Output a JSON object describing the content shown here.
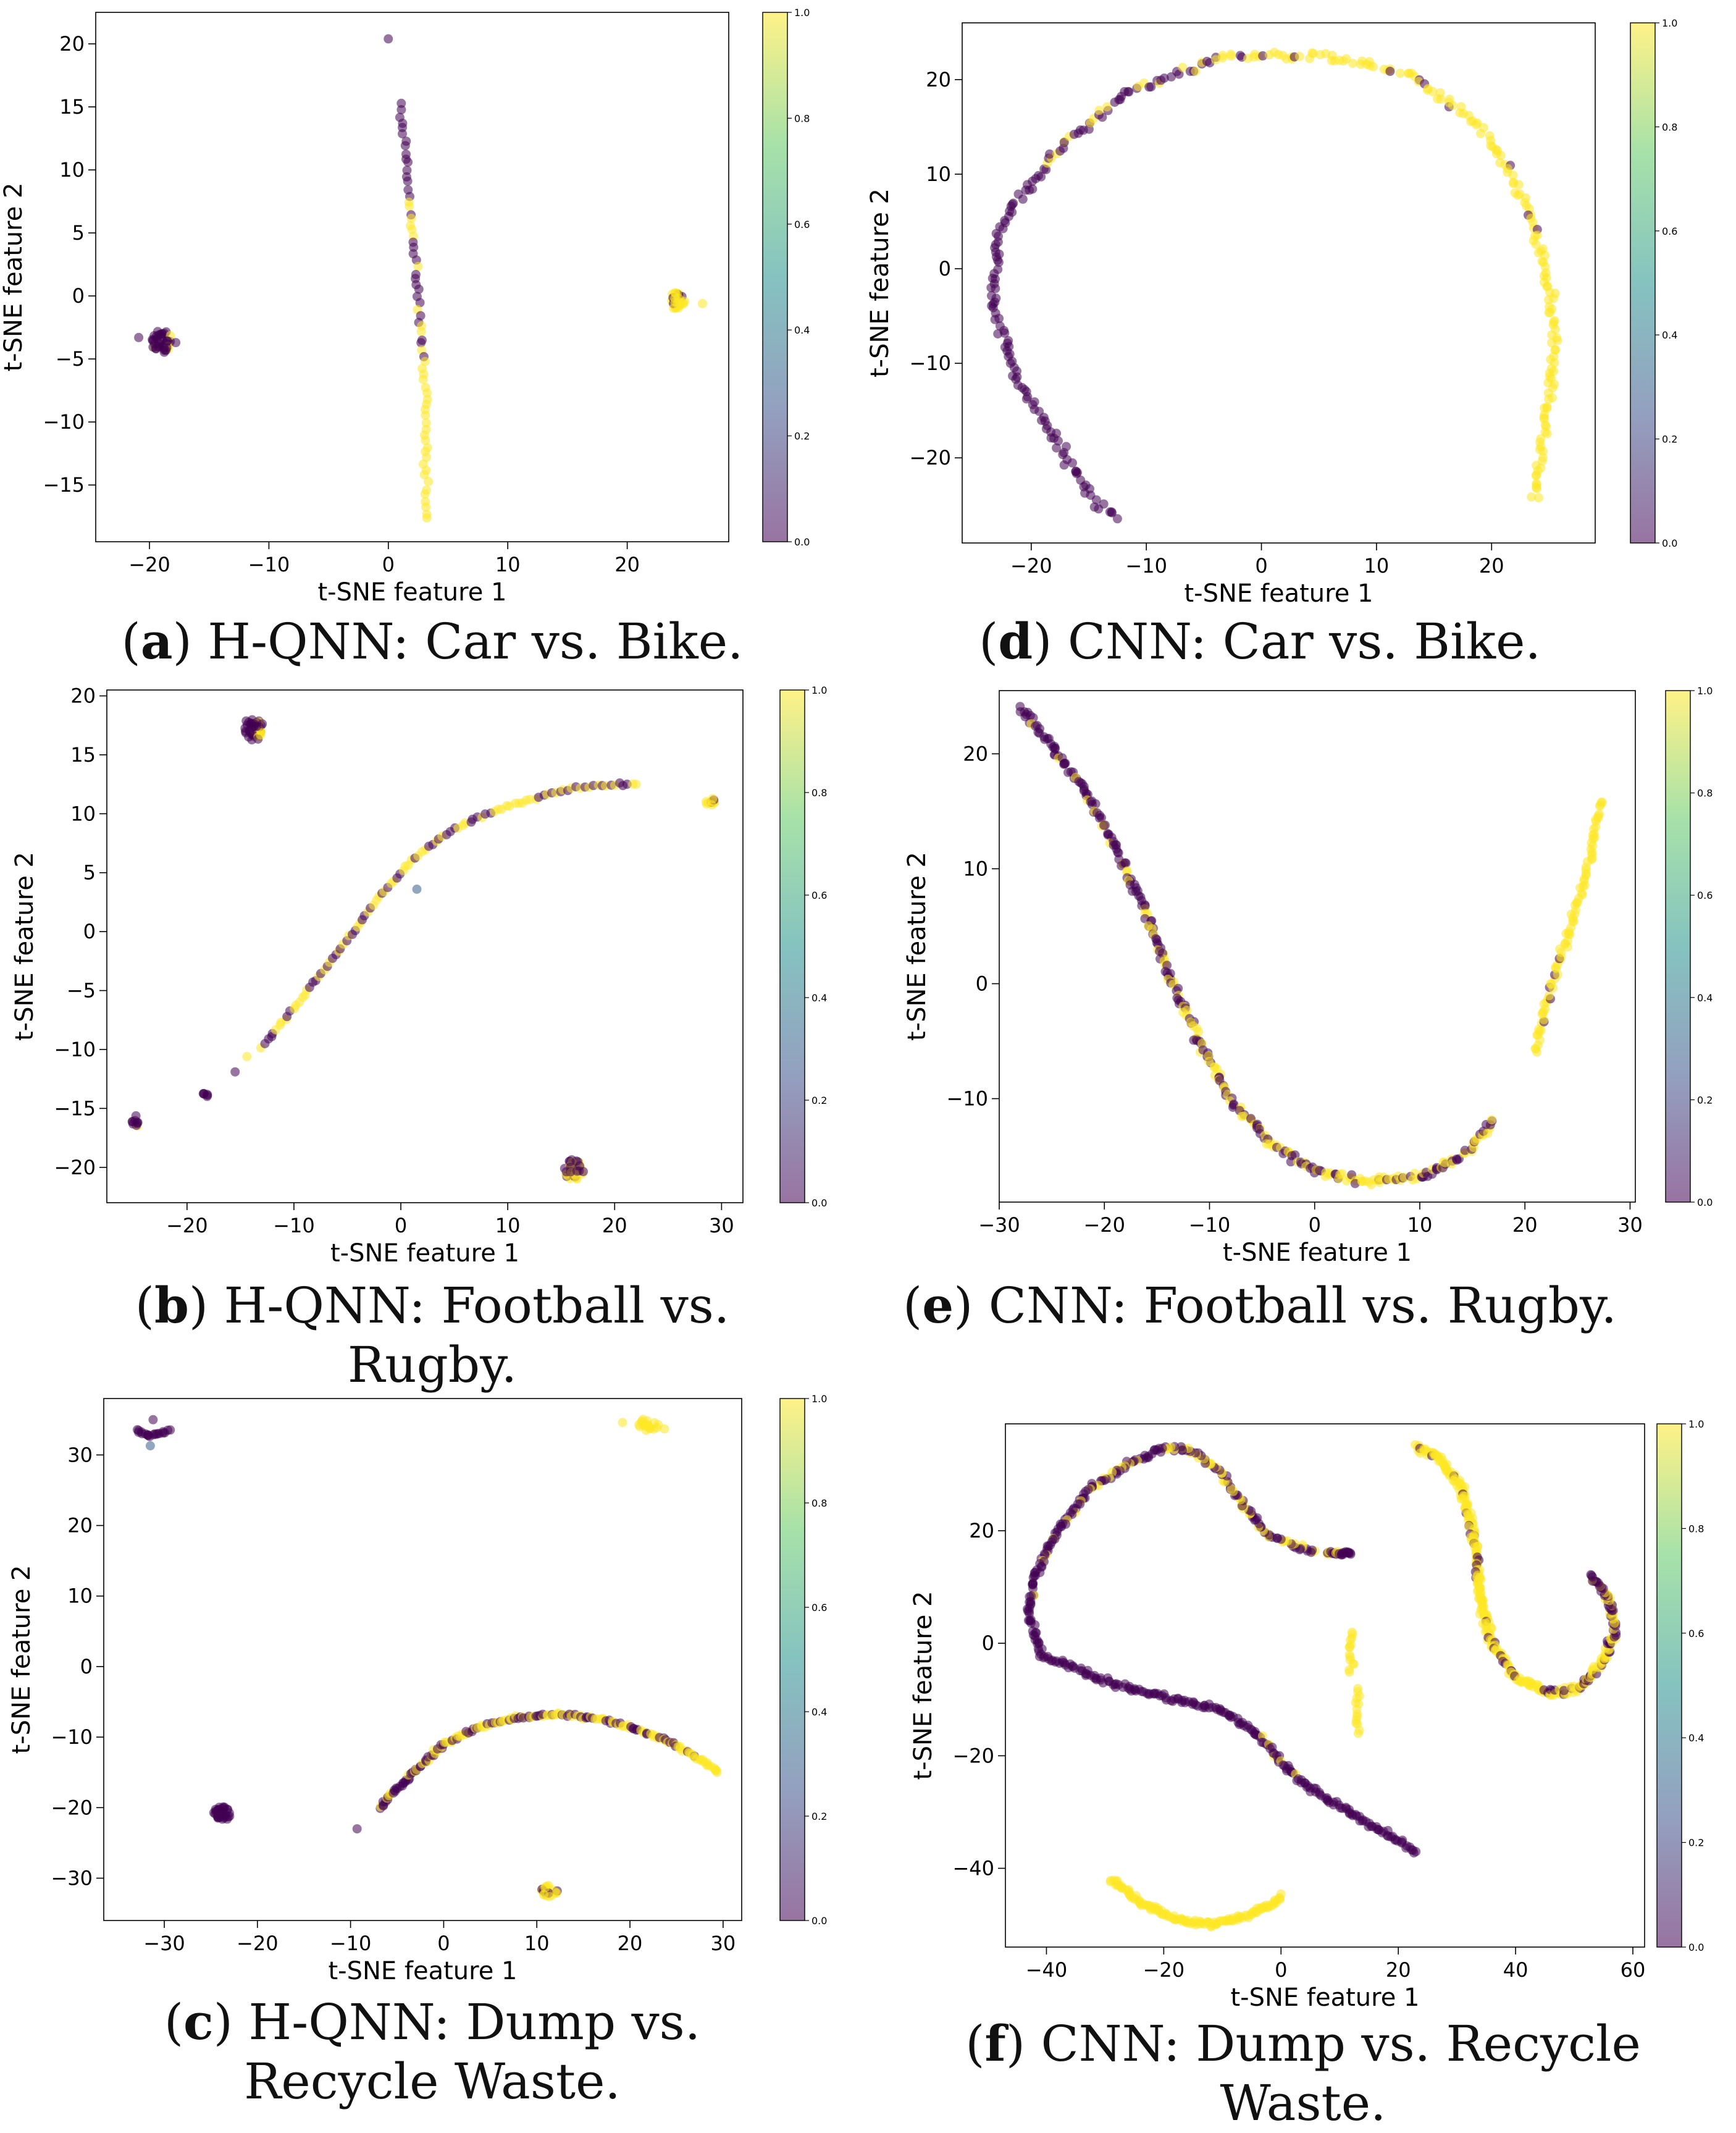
{
  "axis_text": {
    "xlabel": "t-SNE feature 1",
    "ylabel": "t-SNE feature 2"
  },
  "colormap": {
    "name": "viridis",
    "stops": [
      "#440154",
      "#3b528b",
      "#21918c",
      "#5ec962",
      "#fde725"
    ],
    "alpha": 0.55
  },
  "captions": [
    {
      "letter": "a",
      "text": "H-QNN: Car vs. Bike."
    },
    {
      "letter": "d",
      "text": "CNN: Car vs. Bike."
    },
    {
      "letter": "b",
      "text": "H-QNN: Football vs. Rugby."
    },
    {
      "letter": "e",
      "text": "CNN: Football vs. Rugby."
    },
    {
      "letter": "c",
      "text": "H-QNN: Dump vs. Recycle Waste."
    },
    {
      "letter": "f",
      "text": "CNN: Dump vs. Recycle Waste."
    }
  ],
  "chart_data": [
    {
      "id": "a",
      "type": "scatter",
      "title": "",
      "xlabel": "t-SNE feature 1",
      "ylabel": "t-SNE feature 2",
      "xlim": [
        -24.5,
        28.5
      ],
      "ylim": [
        -19.5,
        22.5
      ],
      "xticks": [
        -20,
        -10,
        0,
        10,
        20
      ],
      "yticks": [
        -15,
        -10,
        -5,
        0,
        5,
        10,
        15,
        20
      ],
      "colorbar": {
        "range": [
          0,
          1
        ],
        "ticks": [
          0.0,
          0.2,
          0.4,
          0.6,
          0.8,
          1.0
        ]
      },
      "groups": [
        {
          "kind": "blob",
          "label": 0.15,
          "cx": -19.0,
          "cy": -3.6,
          "r": 0.9,
          "n": 45
        },
        {
          "kind": "point",
          "label": 0,
          "x": -20.9,
          "y": -3.3
        },
        {
          "kind": "point",
          "label": 0,
          "x": -17.8,
          "y": -3.7
        },
        {
          "kind": "blob",
          "label": 0.92,
          "cx": 24.2,
          "cy": -0.4,
          "r": 0.7,
          "n": 38
        },
        {
          "kind": "point",
          "label": 1,
          "x": 26.3,
          "y": -0.6
        },
        {
          "kind": "point",
          "label": 0,
          "x": 0.0,
          "y": 20.4
        },
        {
          "kind": "curve",
          "n": 70,
          "jitter": 0.15,
          "points": [
            [
              1.0,
              15.2
            ],
            [
              1.4,
              11.5
            ],
            [
              2.0,
              5.0
            ],
            [
              2.6,
              -1.0
            ],
            [
              3.0,
              -6.0
            ],
            [
              3.1,
              -11.3
            ],
            [
              3.2,
              -17.7
            ]
          ],
          "labels": [
            0,
            0,
            0.35,
            0.5,
            0.85,
            1,
            1
          ]
        }
      ]
    },
    {
      "id": "d",
      "type": "scatter",
      "title": "",
      "xlabel": "t-SNE feature 1",
      "ylabel": "t-SNE feature 2",
      "xlim": [
        -26,
        29
      ],
      "ylim": [
        -29,
        26
      ],
      "xticks": [
        -20,
        -10,
        0,
        10,
        20
      ],
      "yticks": [
        -20,
        -10,
        0,
        10,
        20
      ],
      "colorbar": {
        "range": [
          0,
          1
        ],
        "ticks": [
          0.0,
          0.2,
          0.4,
          0.6,
          0.8,
          1.0
        ]
      },
      "groups": [
        {
          "kind": "curve",
          "n": 340,
          "jitter": 0.35,
          "points": [
            [
              -12.5,
              -26
            ],
            [
              -14.5,
              -24.5
            ],
            [
              -18,
              -18
            ],
            [
              -21.5,
              -11
            ],
            [
              -23.3,
              -4
            ],
            [
              -23,
              3
            ],
            [
              -22,
              6
            ],
            [
              -18,
              12
            ],
            [
              -12,
              18.5
            ],
            [
              -3,
              22.5
            ],
            [
              5,
              22.5
            ],
            [
              13,
              20.5
            ],
            [
              19,
              15
            ],
            [
              23,
              7
            ],
            [
              25,
              -2
            ],
            [
              25.5,
              -9
            ],
            [
              24.5,
              -18
            ],
            [
              23.8,
              -24.3
            ]
          ],
          "labels": [
            0,
            0,
            0,
            0,
            0,
            0,
            0.05,
            0.15,
            0.3,
            0.5,
            0.7,
            0.8,
            0.9,
            0.95,
            1,
            1,
            1,
            1
          ]
        }
      ]
    },
    {
      "id": "b",
      "type": "scatter",
      "title": "",
      "xlabel": "t-SNE feature 1",
      "ylabel": "t-SNE feature 2",
      "xlim": [
        -27.5,
        32
      ],
      "ylim": [
        -23,
        20.5
      ],
      "xticks": [
        -20,
        -10,
        0,
        10,
        20,
        30
      ],
      "yticks": [
        -20,
        -15,
        -10,
        -5,
        0,
        5,
        10,
        15,
        20
      ],
      "colorbar": {
        "range": [
          0,
          1
        ],
        "ticks": [
          0.0,
          0.2,
          0.4,
          0.6,
          0.8,
          1.0
        ]
      },
      "groups": [
        {
          "kind": "blob",
          "label": 0.3,
          "cx": -13.8,
          "cy": 17.2,
          "r": 1.0,
          "n": 45
        },
        {
          "kind": "blob",
          "label": 0.2,
          "cx": -24.8,
          "cy": -16.1,
          "r": 0.5,
          "n": 10
        },
        {
          "kind": "blob",
          "label": 0.25,
          "cx": -18.4,
          "cy": -13.8,
          "r": 0.35,
          "n": 6
        },
        {
          "kind": "blob",
          "label": 0.3,
          "cx": 16.2,
          "cy": -20.2,
          "r": 0.9,
          "n": 35
        },
        {
          "kind": "blob",
          "label": 0.8,
          "cx": 28.9,
          "cy": 11.0,
          "r": 0.45,
          "n": 10
        },
        {
          "kind": "point",
          "label": 0,
          "x": -15.5,
          "y": -11.9
        },
        {
          "kind": "point",
          "label": 1,
          "x": -14.4,
          "y": -10.6
        },
        {
          "kind": "point",
          "label": 0.3,
          "x": 1.5,
          "y": 3.6
        },
        {
          "kind": "curve",
          "n": 110,
          "jitter": 0.1,
          "points": [
            [
              -13,
              -9.8
            ],
            [
              -10,
              -6.5
            ],
            [
              -7,
              -3
            ],
            [
              -4,
              0.5
            ],
            [
              -2,
              3
            ],
            [
              1,
              6
            ],
            [
              4,
              8.2
            ],
            [
              8,
              10
            ],
            [
              12,
              11.2
            ],
            [
              16,
              12.2
            ],
            [
              18,
              12.4
            ],
            [
              22,
              12.5
            ]
          ],
          "labels": [
            0.3,
            0.4,
            0.3,
            0.5,
            0.5,
            0.7,
            0.6,
            0.7,
            0.8,
            0.7,
            0.5,
            0.5
          ]
        }
      ]
    },
    {
      "id": "e",
      "type": "scatter",
      "title": "",
      "xlabel": "t-SNE feature 1",
      "ylabel": "t-SNE feature 2",
      "xlim": [
        -30,
        30.5
      ],
      "ylim": [
        -19,
        25.5
      ],
      "xticks": [
        -30,
        -20,
        -10,
        0,
        10,
        20,
        30
      ],
      "yticks": [
        -10,
        0,
        10,
        20
      ],
      "colorbar": {
        "range": [
          0,
          1
        ],
        "ticks": [
          0.0,
          0.2,
          0.4,
          0.6,
          0.8,
          1.0
        ]
      },
      "groups": [
        {
          "kind": "curve",
          "n": 320,
          "jitter": 0.3,
          "points": [
            [
              -28,
              24
            ],
            [
              -26,
              22
            ],
            [
              -22,
              17
            ],
            [
              -19,
              12
            ],
            [
              -16,
              6
            ],
            [
              -13.5,
              0
            ],
            [
              -11,
              -5
            ],
            [
              -8,
              -10
            ],
            [
              -4,
              -14
            ],
            [
              0,
              -16.3
            ],
            [
              5,
              -17.2
            ],
            [
              10,
              -16.8
            ],
            [
              14,
              -15
            ],
            [
              17,
              -12
            ]
          ],
          "labels": [
            0,
            0.1,
            0.15,
            0.2,
            0.3,
            0.3,
            0.35,
            0.4,
            0.5,
            0.5,
            0.4,
            0.5,
            0.6,
            0.6
          ]
        },
        {
          "kind": "curve",
          "n": 90,
          "jitter": 0.25,
          "points": [
            [
              21,
              -6
            ],
            [
              22,
              -2
            ],
            [
              24,
              4
            ],
            [
              26,
              10
            ],
            [
              27,
              15
            ],
            [
              27.2,
              16
            ]
          ],
          "labels": [
            0.9,
            0.8,
            0.9,
            1,
            1,
            1
          ]
        }
      ]
    },
    {
      "id": "c",
      "type": "scatter",
      "title": "",
      "xlabel": "t-SNE feature 1",
      "ylabel": "t-SNE feature 2",
      "xlim": [
        -36.5,
        32
      ],
      "ylim": [
        -36,
        38
      ],
      "xticks": [
        -30,
        -20,
        -10,
        0,
        10,
        20,
        30
      ],
      "yticks": [
        -30,
        -20,
        -10,
        0,
        10,
        20,
        30
      ],
      "colorbar": {
        "range": [
          0,
          1
        ],
        "ticks": [
          0.0,
          0.2,
          0.4,
          0.6,
          0.8,
          1.0
        ]
      },
      "groups": [
        {
          "kind": "curve",
          "n": 20,
          "jitter": 0.15,
          "points": [
            [
              -33,
              33.5
            ],
            [
              -31.5,
              32.7
            ],
            [
              -29.5,
              33.5
            ]
          ],
          "labels": [
            0,
            0,
            0
          ]
        },
        {
          "kind": "point",
          "label": 0,
          "x": -31.2,
          "y": 35.0
        },
        {
          "kind": "point",
          "label": 0.3,
          "x": -31.5,
          "y": 31.3
        },
        {
          "kind": "blob",
          "label": 1,
          "cx": 22,
          "cy": 34.3,
          "r": 1.1,
          "n": 18
        },
        {
          "kind": "point",
          "label": 1,
          "x": 19.2,
          "y": 34.6
        },
        {
          "kind": "point",
          "label": 1,
          "x": 23.7,
          "y": 33.7
        },
        {
          "kind": "blob",
          "label": 0,
          "cx": -23.8,
          "cy": -20.8,
          "r": 1.0,
          "n": 40
        },
        {
          "kind": "blob",
          "label": 0.8,
          "cx": 11.3,
          "cy": -31.8,
          "r": 0.9,
          "n": 25
        },
        {
          "kind": "point",
          "label": 0,
          "x": -9.3,
          "y": -23.0
        },
        {
          "kind": "curve",
          "n": 190,
          "jitter": 0.2,
          "points": [
            [
              -7,
              -20
            ],
            [
              -4,
              -16
            ],
            [
              0,
              -11
            ],
            [
              4,
              -8.5
            ],
            [
              8,
              -7.2
            ],
            [
              12,
              -6.8
            ],
            [
              16,
              -7.2
            ],
            [
              20,
              -8.5
            ],
            [
              24,
              -10.5
            ],
            [
              28,
              -13.5
            ],
            [
              29.5,
              -15
            ]
          ],
          "labels": [
            0.2,
            0.4,
            0.5,
            0.6,
            0.5,
            0.6,
            0.5,
            0.6,
            0.7,
            0.8,
            1
          ]
        }
      ]
    },
    {
      "id": "f",
      "type": "scatter",
      "title": "",
      "xlabel": "t-SNE feature 1",
      "ylabel": "t-SNE feature 2",
      "xlim": [
        -47,
        62
      ],
      "ylim": [
        -54,
        39
      ],
      "xticks": [
        -40,
        -20,
        0,
        20,
        40,
        60
      ],
      "yticks": [
        -40,
        -20,
        0,
        20
      ],
      "colorbar": {
        "range": [
          0,
          1
        ],
        "ticks": [
          0.0,
          0.2,
          0.4,
          0.6,
          0.8,
          1.0
        ]
      },
      "groups": [
        {
          "kind": "curve",
          "n": 440,
          "jitter": 0.45,
          "points": [
            [
              6,
              16
            ],
            [
              -2,
              19
            ],
            [
              -6,
              24
            ],
            [
              -10,
              30
            ],
            [
              -15,
              34
            ],
            [
              -19,
              35
            ],
            [
              -26,
              32
            ],
            [
              -33,
              27
            ],
            [
              -38,
              20
            ],
            [
              -42,
              12
            ],
            [
              -43,
              5
            ],
            [
              -41,
              -2
            ],
            [
              -34,
              -5
            ],
            [
              -26,
              -8
            ],
            [
              -18,
              -10
            ],
            [
              -10,
              -12
            ],
            [
              -4,
              -16
            ],
            [
              0,
              -21
            ],
            [
              4,
              -25
            ],
            [
              10,
              -29
            ],
            [
              18,
              -34
            ],
            [
              23,
              -37
            ]
          ],
          "labels": [
            0.4,
            0.5,
            0.4,
            0.5,
            0.4,
            0.3,
            0.25,
            0.2,
            0.15,
            0.1,
            0.05,
            0,
            0,
            0,
            0,
            0,
            0.1,
            0.15,
            0,
            0,
            0,
            0
          ]
        },
        {
          "kind": "curve",
          "n": 24,
          "jitter": 0.4,
          "points": [
            [
              8,
              16
            ],
            [
              12,
              16
            ]
          ],
          "labels": [
            0.4,
            0.1
          ]
        },
        {
          "kind": "curve",
          "n": 14,
          "jitter": 0.35,
          "points": [
            [
              12,
              2
            ],
            [
              12,
              -5
            ]
          ],
          "labels": [
            1,
            1
          ]
        },
        {
          "kind": "curve",
          "n": 14,
          "jitter": 0.35,
          "points": [
            [
              13,
              -8
            ],
            [
              13,
              -16
            ]
          ],
          "labels": [
            1,
            1
          ]
        },
        {
          "kind": "curve",
          "n": 350,
          "jitter": 0.5,
          "points": [
            [
              23,
              35
            ],
            [
              27,
              33
            ],
            [
              31,
              27
            ],
            [
              33,
              18
            ],
            [
              34,
              8
            ],
            [
              36,
              0
            ],
            [
              40,
              -6
            ],
            [
              46,
              -9
            ],
            [
              51,
              -8
            ],
            [
              55,
              -3
            ],
            [
              57,
              2
            ],
            [
              56,
              8
            ],
            [
              53,
              12
            ]
          ],
          "labels": [
            1,
            0.95,
            0.9,
            0.85,
            0.9,
            0.85,
            0.9,
            0.8,
            0.75,
            0.6,
            0.5,
            0.45,
            0.3
          ]
        },
        {
          "kind": "curve",
          "n": 130,
          "jitter": 0.4,
          "points": [
            [
              -29,
              -42
            ],
            [
              -24,
              -46
            ],
            [
              -18,
              -49
            ],
            [
              -12,
              -50
            ],
            [
              -6,
              -48.5
            ],
            [
              -2,
              -46.5
            ],
            [
              0,
              -45
            ]
          ],
          "labels": [
            1,
            1,
            1,
            1,
            1,
            1,
            1
          ]
        }
      ]
    }
  ]
}
